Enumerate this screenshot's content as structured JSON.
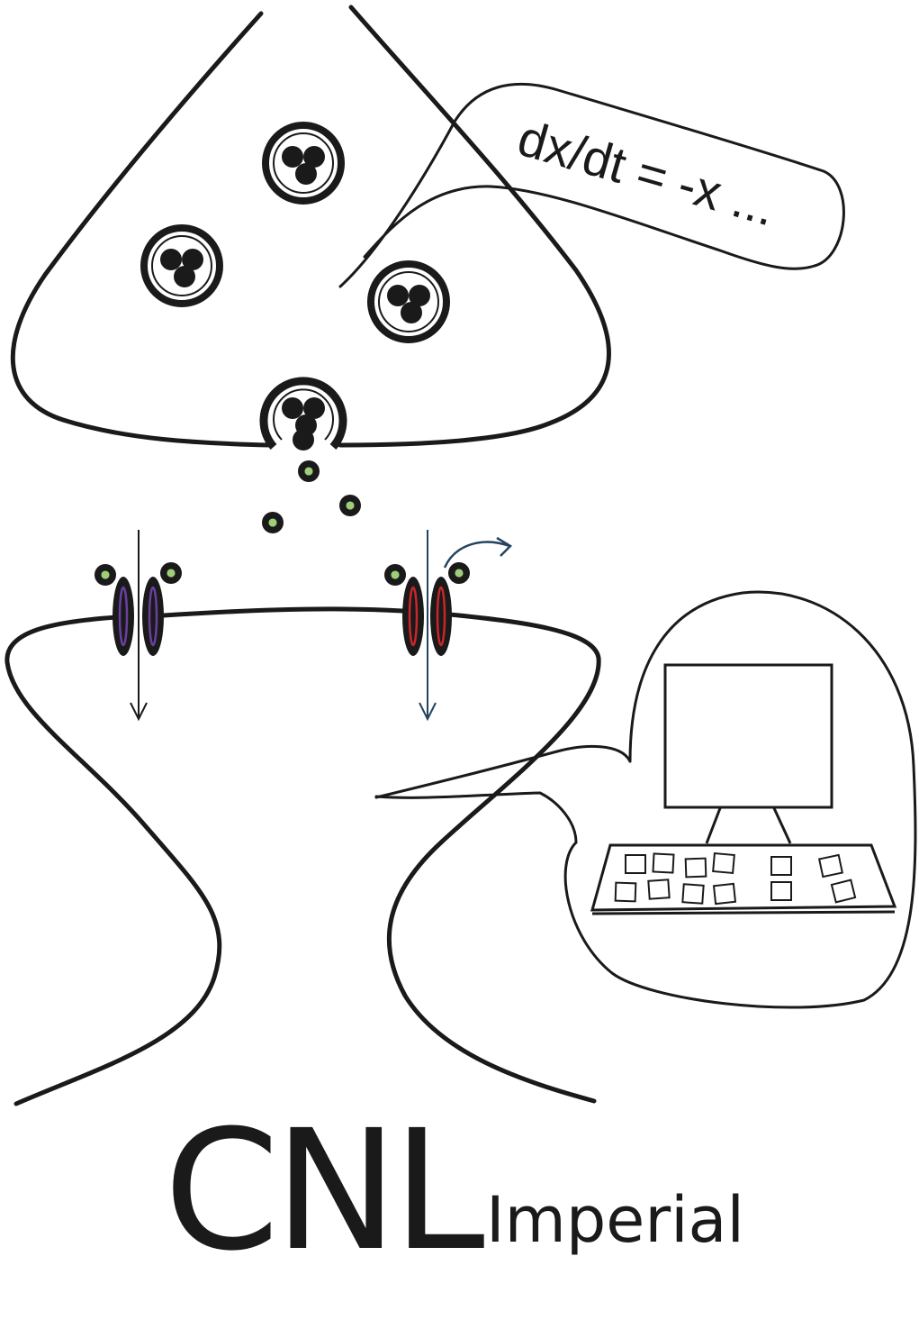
{
  "equation": "dx/dt = -x ...",
  "logo": {
    "main": "CNL",
    "sub": "Imperial"
  },
  "colors": {
    "ink": "#1a1a1a",
    "transmitter_core": "#9fce7a",
    "channel_left": "#6a3fa0",
    "channel_right": "#c8262b",
    "arrow_accent": "#23435f"
  },
  "icons": {
    "presynaptic_terminal": "presynaptic-terminal-outline",
    "postsynaptic_neuron": "postsynaptic-neuron-outline",
    "vesicle": "synaptic-vesicle-icon",
    "neurotransmitter": "neurotransmitter-dot-icon",
    "ion_channel": "ion-channel-icon",
    "computer": "computer-icon"
  }
}
